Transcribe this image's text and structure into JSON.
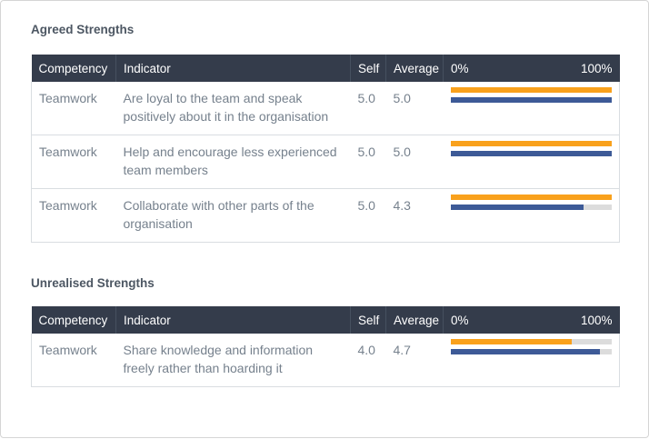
{
  "colors": {
    "self_bar": "#f9a11c",
    "average_bar": "#3d5a97",
    "bar_track": "#dcdcdc",
    "header_bg": "#343c4b",
    "header_text": "#ffffff",
    "body_text": "#76818d",
    "title_text": "#4d5763"
  },
  "sections": [
    {
      "title": "Agreed Strengths",
      "columns": {
        "competency": "Competency",
        "indicator": "Indicator",
        "self": "Self",
        "average": "Average",
        "scale_min": "0%",
        "scale_max": "100%"
      },
      "rows": [
        {
          "competency": "Teamwork",
          "indicator": "Are loyal to the team and speak positively about it in the organisation",
          "self": "5.0",
          "average": "5.0",
          "self_pct": 100,
          "average_pct": 100
        },
        {
          "competency": "Teamwork",
          "indicator": "Help and encourage less experienced team members",
          "self": "5.0",
          "average": "5.0",
          "self_pct": 100,
          "average_pct": 100
        },
        {
          "competency": "Teamwork",
          "indicator": "Collaborate with other parts of the organisation",
          "self": "5.0",
          "average": "4.3",
          "self_pct": 100,
          "average_pct": 82.5
        }
      ]
    },
    {
      "title": "Unrealised Strengths",
      "columns": {
        "competency": "Competency",
        "indicator": "Indicator",
        "self": "Self",
        "average": "Average",
        "scale_min": "0%",
        "scale_max": "100%"
      },
      "rows": [
        {
          "competency": "Teamwork",
          "indicator": "Share knowledge and information freely rather than hoarding it",
          "self": "4.0",
          "average": "4.7",
          "self_pct": 75,
          "average_pct": 92.5
        }
      ]
    }
  ],
  "chart_data": [
    {
      "type": "bar",
      "title": "Agreed Strengths",
      "categories": [
        "Are loyal to the team and speak positively about it in the organisation",
        "Help and encourage less experienced team members",
        "Collaborate with other parts of the organisation"
      ],
      "series": [
        {
          "name": "Self",
          "values": [
            5.0,
            5.0,
            5.0
          ]
        },
        {
          "name": "Average",
          "values": [
            5.0,
            5.0,
            4.3
          ]
        }
      ],
      "series_pct": [
        {
          "name": "Self",
          "values": [
            100,
            100,
            100
          ]
        },
        {
          "name": "Average",
          "values": [
            100,
            100,
            82.5
          ]
        }
      ],
      "xlabel": "",
      "ylabel": "",
      "axis_labels": [
        "0%",
        "100%"
      ],
      "xlim": [
        0,
        100
      ],
      "legend": "none",
      "orientation": "horizontal"
    },
    {
      "type": "bar",
      "title": "Unrealised Strengths",
      "categories": [
        "Share knowledge and information freely rather than hoarding it"
      ],
      "series": [
        {
          "name": "Self",
          "values": [
            4.0
          ]
        },
        {
          "name": "Average",
          "values": [
            4.7
          ]
        }
      ],
      "series_pct": [
        {
          "name": "Self",
          "values": [
            75
          ]
        },
        {
          "name": "Average",
          "values": [
            92.5
          ]
        }
      ],
      "xlabel": "",
      "ylabel": "",
      "axis_labels": [
        "0%",
        "100%"
      ],
      "xlim": [
        0,
        100
      ],
      "legend": "none",
      "orientation": "horizontal"
    }
  ]
}
